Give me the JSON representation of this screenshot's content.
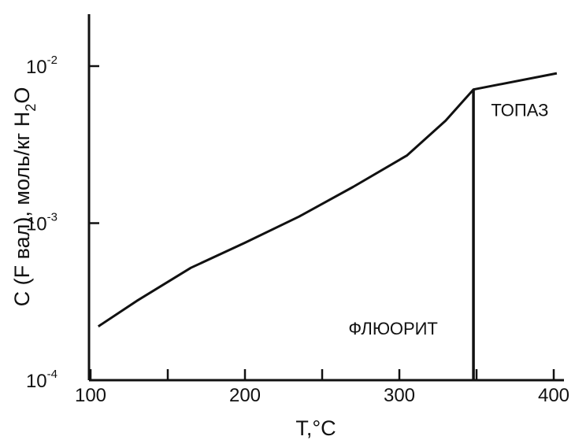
{
  "chart_data": {
    "type": "line",
    "xlabel": "T,°C",
    "ylabel": "C (F вал), моль/кг H",
    "ylabel_sub": "2",
    "ylabel_tail": "O",
    "xscale": "linear",
    "yscale": "log",
    "xlim": [
      100,
      410
    ],
    "ylim": [
      0.0001,
      0.025
    ],
    "grid": false,
    "x_ticks": [
      100,
      150,
      200,
      250,
      300,
      350,
      400
    ],
    "x_tick_labels": [
      "100",
      "",
      "200",
      "",
      "300",
      "",
      "400"
    ],
    "y_ticks": [
      0.0001,
      0.001,
      0.01
    ],
    "y_tick_labels": [
      {
        "base": "10",
        "exp": "-4"
      },
      {
        "base": "10",
        "exp": "-3"
      },
      {
        "base": "10",
        "exp": "-2"
      }
    ],
    "series": [
      {
        "x": [
          105,
          130,
          165,
          200,
          235,
          270,
          305,
          330,
          348,
          402
        ],
        "y": [
          0.00022,
          0.00032,
          0.00052,
          0.00075,
          0.0011,
          0.0017,
          0.0027,
          0.0045,
          0.0071,
          0.009
        ]
      }
    ],
    "boundary": {
      "x": 348,
      "y_from": 0.0001,
      "y_to": 0.0071
    },
    "annotations": [
      {
        "text": "ФЛЮОРИТ",
        "x": 296,
        "y": 0.000195
      },
      {
        "text": "ТОПАЗ",
        "x": 378,
        "y": 0.0048
      }
    ],
    "colors": {
      "line": "#111111",
      "axis": "#111111",
      "background": "#ffffff"
    }
  }
}
